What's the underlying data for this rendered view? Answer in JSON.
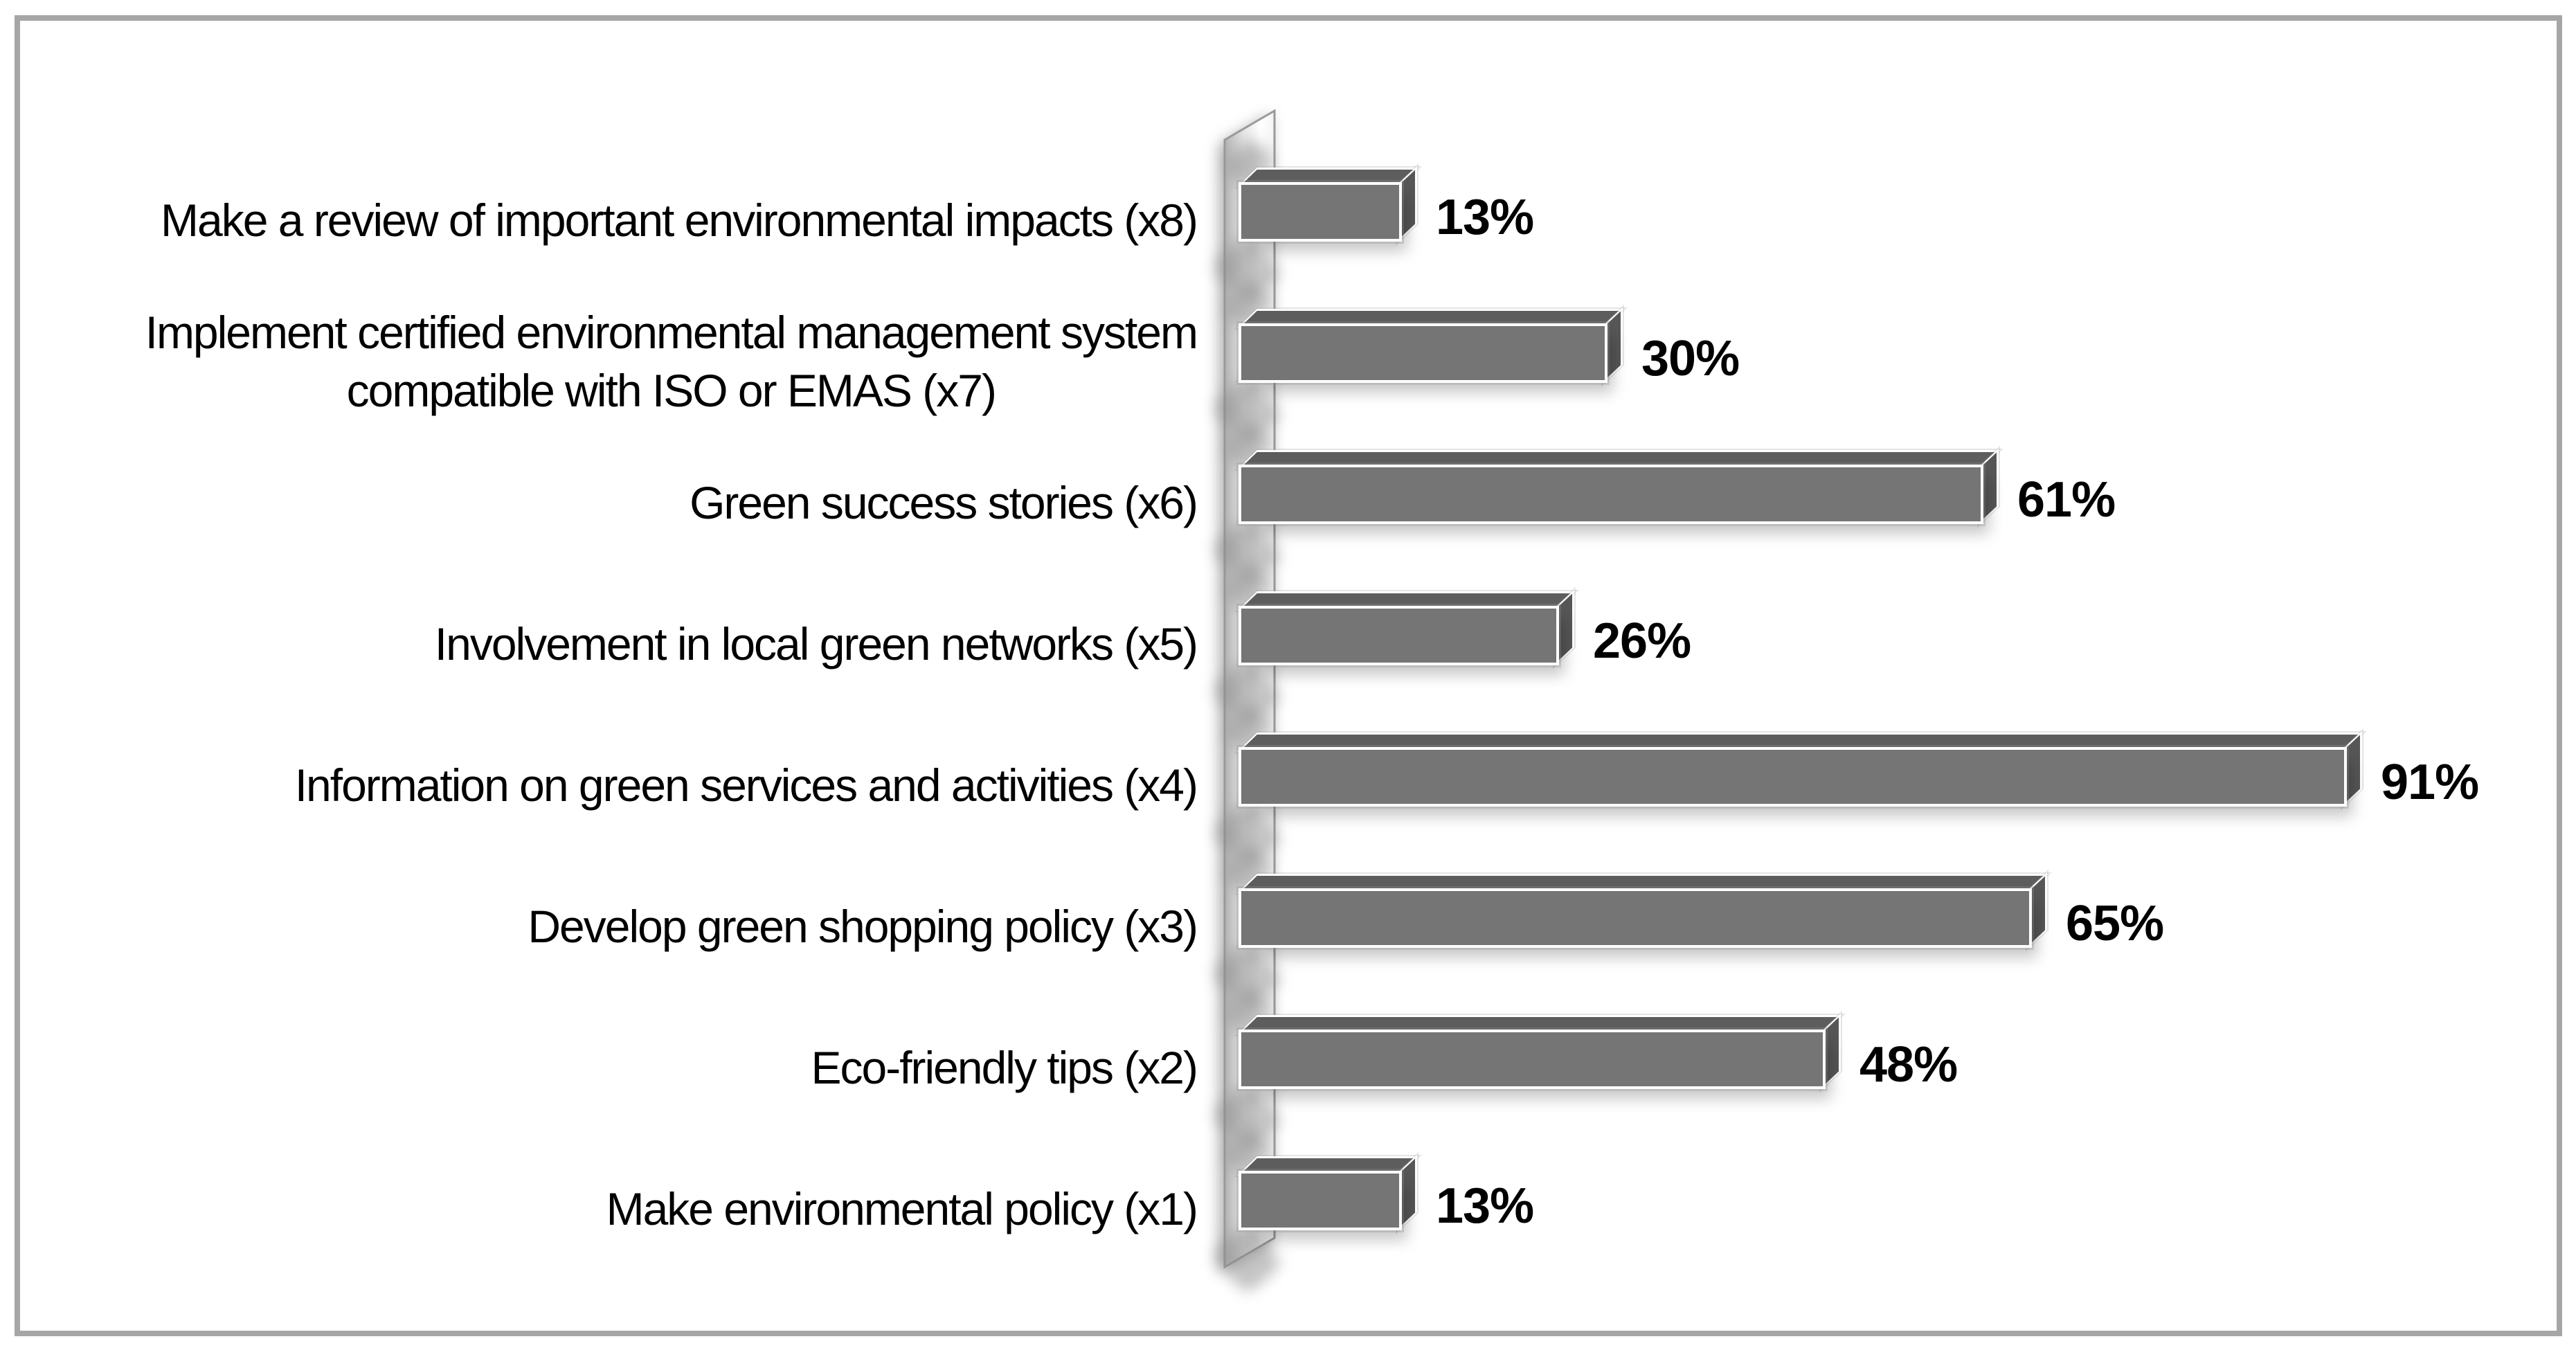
{
  "chart_data": {
    "type": "bar",
    "orientation": "horizontal",
    "title": "",
    "xlabel": "",
    "ylabel": "",
    "unit": "%",
    "xlim": [
      0,
      100
    ],
    "grid": false,
    "legend": false,
    "style": "3d-cylinder-free box bars with perspective wall",
    "categories": [
      "Make a review of important environmental impacts (x8)",
      "Implement certified environmental management system\ncompatible with ISO or EMAS (x7)",
      "Green success stories (x6)",
      "Involvement in local green networks (x5)",
      "Information on green services and activities (x4)",
      "Develop green shopping policy (x3)",
      "Eco-friendly tips (x2)",
      "Make environmental policy (x1)"
    ],
    "values": [
      13,
      30,
      61,
      26,
      91,
      65,
      48,
      13
    ],
    "value_labels": [
      "13%",
      "30%",
      "61%",
      "26%",
      "91%",
      "65%",
      "48%",
      "13%"
    ],
    "colors": {
      "bar_front": "#757575",
      "bar_top": "#5d5d5d",
      "bar_side": "#565656",
      "bar_outline": "#ffffff",
      "wall_stroke": "#9a9a9a",
      "wall_fill_left": "#b2b2b2",
      "wall_fill_right": "#ffffff",
      "frame_border": "#a6a6a6",
      "text": "#000000",
      "background": "#ffffff"
    }
  }
}
